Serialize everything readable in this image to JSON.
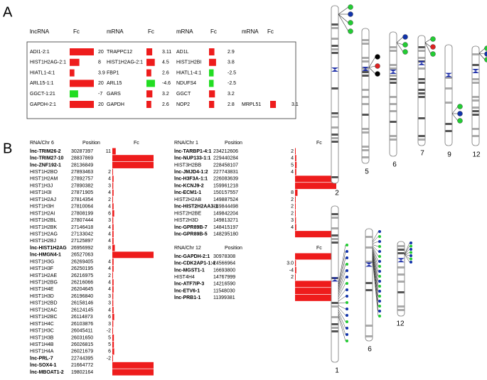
{
  "panel_labels": [
    "A",
    "B"
  ],
  "table_a": {
    "headers": [
      "lncRNA",
      "Fc",
      "mRNA",
      "Fc",
      "mRNA",
      "Fc",
      "mRNA",
      "Fc"
    ],
    "rows": [
      [
        "ADI1-2:1",
        20,
        "TRAPPC12",
        3.11,
        "AD1L",
        2.9,
        null,
        null
      ],
      [
        "HIST1H2AG-2:1",
        8,
        "HIST1H2AG-2:1",
        4.5,
        "HIST1H2BI",
        3.8,
        null,
        null
      ],
      [
        "HIATL1-4:1",
        3.9,
        "FBP1",
        2.6,
        "HIATL1-4:1",
        -2.5,
        null,
        null
      ],
      [
        "ARL15-1:1",
        20,
        "ARL15",
        -4.6,
        "NDUFS4",
        -2.5,
        null,
        null
      ],
      [
        "GGCT-1:21",
        -7,
        "GARS",
        3.2,
        "GGCT",
        3.2,
        null,
        null
      ],
      [
        "GAPDH-2:1",
        20,
        "GAPDH",
        2.6,
        "NOP2",
        2.8,
        "MRPL51",
        3.1
      ]
    ],
    "positive_color": "#ee1c1c",
    "negative_color": "#22dd22"
  },
  "table_b": [
    {
      "headers": [
        "RNA/Chr 6",
        "Position",
        "Fc"
      ],
      "rows": [
        [
          "lnc-TRIM26-2",
          30287397,
          11
        ],
        [
          "lnc-TRIM27-10",
          28837869,
          20
        ],
        [
          "lnc-ZNF192-1",
          28136849,
          20
        ],
        [
          "HIST1H2BO",
          27893463,
          2
        ],
        [
          "HIST1H2AM",
          27892757,
          4
        ],
        [
          "HIST1H3J",
          27890382,
          3
        ],
        [
          "HIST1H3I",
          27871905,
          4
        ],
        [
          "HIST1H2AJ",
          27814354,
          2
        ],
        [
          "HIST1H3H",
          27810064,
          4
        ],
        [
          "HIST1H2AI",
          27808199,
          6
        ],
        [
          "HIST1H2BL",
          27807444,
          3
        ],
        [
          "HIST1H2BK",
          27146418,
          4
        ],
        [
          "HIST1H2AG",
          27133042,
          4
        ],
        [
          "HIST1H2BJ",
          27125897,
          4
        ],
        [
          "lnc-HIST1H2AG",
          26956992,
          8
        ],
        [
          "lnc-HMGN4-1",
          26527063,
          20
        ],
        [
          "HIST1H3G",
          26269405,
          4
        ],
        [
          "HIST1H3F",
          26250195,
          4
        ],
        [
          "HIST1H2AE",
          26216975,
          2
        ],
        [
          "HIST1H2BG",
          26216066,
          4
        ],
        [
          "HIST1H4E",
          26204645,
          4
        ],
        [
          "HIST1H3D",
          26196840,
          3
        ],
        [
          "HIST1H2BD",
          26158146,
          3
        ],
        [
          "HIST1H2AC",
          26124145,
          4
        ],
        [
          "HIST1H2BC",
          26114873,
          6
        ],
        [
          "HIST1H4C",
          26103876,
          3
        ],
        [
          "HIST1H3C",
          26045411,
          -2
        ],
        [
          "HIST1H3B",
          26031650,
          5
        ],
        [
          "HIST1H4B",
          26026815,
          5
        ],
        [
          "HIST1H4A",
          26021679,
          6
        ],
        [
          "lnc-PRL-7",
          22744395,
          -2
        ],
        [
          "lnc-SOX4-1",
          21664772,
          20
        ],
        [
          "lnc-MBOAT1-2",
          19802164,
          20
        ]
      ]
    },
    {
      "headers": [
        "RNA/Chr 1",
        "Position",
        "Fc"
      ],
      "rows": [
        [
          "lnc-TARBP1-4:1",
          234212606,
          2
        ],
        [
          "lnc-NUP133-1:1",
          229440284,
          4
        ],
        [
          "HIST3H2BB",
          228458107,
          5
        ],
        [
          "lnc-JMJD4-1:2",
          227743831,
          4
        ],
        [
          "lnc-H3F3A-1:1",
          226083639,
          20
        ],
        [
          "lnc-KCNJ9-2",
          159961218,
          20
        ],
        [
          "lnc-ECM1-1",
          150157557,
          8
        ],
        [
          "HIST2H2AB",
          149887524,
          2
        ],
        [
          "lnc-HIST2H2AA3-1",
          149844498,
          2
        ],
        [
          "HIST2H2BE",
          149842204,
          2
        ],
        [
          "HIST2H3D",
          149813271,
          3
        ],
        [
          "lnc-GPR89B-7",
          148415197,
          4
        ],
        [
          "lnc-GPR89B-5",
          148295180,
          20
        ]
      ]
    },
    {
      "headers": [
        "RNA/Chr 12",
        "Position",
        "Fc"
      ],
      "rows": [
        [
          "lnc-GAPDH-2:1",
          30978308,
          20
        ],
        [
          "lnc-CDK2AP1-1:4",
          24566964,
          3
        ],
        [
          "lnc-MGST1-1",
          16693800,
          -4
        ],
        [
          "HIST4H4",
          14767999,
          2
        ],
        [
          "lnc-ATF7IP-3",
          14216590,
          20
        ],
        [
          "lnc-ETV6-1",
          11548030,
          20
        ],
        [
          "lnc-PRB1-1",
          11399381,
          20
        ]
      ],
      "value_labels": {
        "1": "3.0"
      }
    }
  ],
  "chromosome_labels": [
    "2",
    "5",
    "6",
    "7",
    "9",
    "12",
    "1",
    "6",
    "12"
  ]
}
